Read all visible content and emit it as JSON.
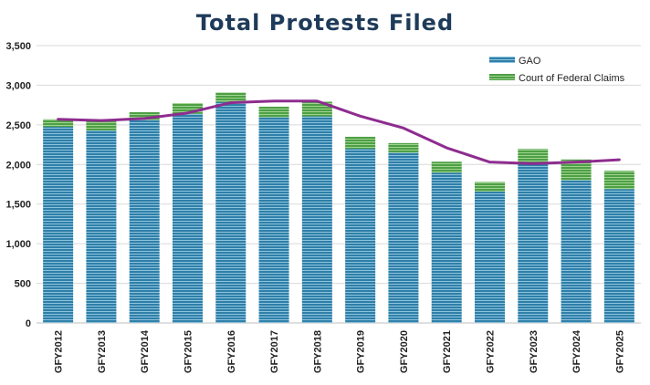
{
  "chart_data": {
    "type": "bar",
    "stacked": true,
    "title": "Total Protests Filed",
    "xlabel": "",
    "ylabel": "",
    "categories": [
      "GFY2012",
      "GFY2013",
      "GFY2014",
      "GFY2015",
      "GFY2016",
      "GFY2017",
      "GFY2018",
      "GFY2019",
      "GFY2020",
      "GFY2021",
      "GFY2022",
      "GFY2023",
      "GFY2024",
      "GFY2025"
    ],
    "series": [
      {
        "name": "GAO",
        "color": "#2e86ab",
        "values": [
          2475,
          2429,
          2561,
          2639,
          2789,
          2596,
          2607,
          2198,
          2149,
          1897,
          1658,
          2025,
          1803,
          1690
        ]
      },
      {
        "name": "Court of Federal Claims",
        "color": "#4caf50",
        "values": [
          95,
          125,
          100,
          135,
          120,
          134,
          185,
          152,
          121,
          138,
          121,
          170,
          260,
          230
        ]
      }
    ],
    "trend_line": {
      "color": "#8e2c8f",
      "values": [
        2570,
        2554,
        2580,
        2650,
        2780,
        2800,
        2800,
        2610,
        2460,
        2210,
        2030,
        2010,
        2030,
        2060
      ]
    },
    "yticks": [
      "0",
      "500",
      "1,000",
      "1,500",
      "2,000",
      "2,500",
      "3,000",
      "3,500"
    ],
    "ylim": [
      0,
      3500
    ],
    "grid": true,
    "legend_position": "top-right"
  }
}
